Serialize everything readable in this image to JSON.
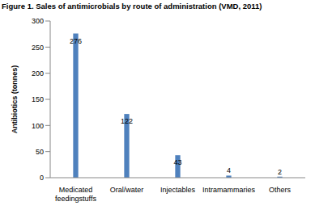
{
  "chart_data": {
    "type": "bar",
    "title": "Figure 1. Sales of antimicrobials by route of administration (VMD, 2011)",
    "y_label": "Antibiotics (tonnes)",
    "categories": [
      "Medicated feedingstuffs",
      "Oral/water",
      "Injectables",
      "Intramammaries",
      "Others"
    ],
    "values": [
      276,
      122,
      43,
      4,
      2
    ],
    "color": "#4f81bd",
    "ylim": [
      0,
      300
    ],
    "yticks": [
      0,
      50,
      100,
      150,
      200,
      250,
      300
    ],
    "grid": false,
    "data_labels": true
  }
}
